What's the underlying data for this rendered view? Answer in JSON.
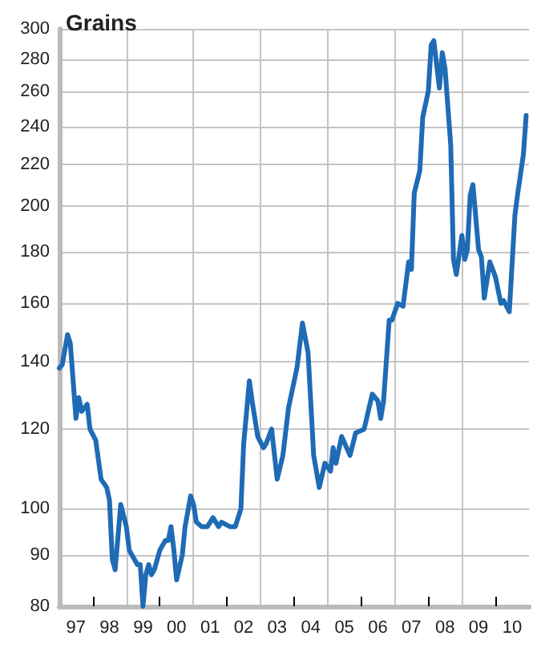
{
  "chart_data": {
    "type": "line",
    "title": "Grains",
    "log": "y",
    "grid": true,
    "marker": "none",
    "line_style": "solid",
    "xlim": [
      "1997-01",
      "2011-01"
    ],
    "xticks": [
      {
        "value": "1997-07",
        "label": "97"
      },
      {
        "value": "1998-01",
        "label": null
      },
      {
        "value": "1998-07",
        "label": "98"
      },
      {
        "value": "1999-01",
        "label": null
      },
      {
        "value": "1999-07",
        "label": "99"
      },
      {
        "value": "2000-01",
        "label": null
      },
      {
        "value": "2000-07",
        "label": "00"
      },
      {
        "value": "2001-01",
        "label": null
      },
      {
        "value": "2001-07",
        "label": "01"
      },
      {
        "value": "2002-01",
        "label": null
      },
      {
        "value": "2002-07",
        "label": "02"
      },
      {
        "value": "2003-01",
        "label": null
      },
      {
        "value": "2003-07",
        "label": "03"
      },
      {
        "value": "2004-01",
        "label": null
      },
      {
        "value": "2004-07",
        "label": "04"
      },
      {
        "value": "2005-01",
        "label": null
      },
      {
        "value": "2005-07",
        "label": "05"
      },
      {
        "value": "2006-01",
        "label": null
      },
      {
        "value": "2006-07",
        "label": "06"
      },
      {
        "value": "2007-01",
        "label": null
      },
      {
        "value": "2007-07",
        "label": "07"
      },
      {
        "value": "2008-01",
        "label": null
      },
      {
        "value": "2008-07",
        "label": "08"
      },
      {
        "value": "2009-01",
        "label": null
      },
      {
        "value": "2009-07",
        "label": "09"
      },
      {
        "value": "2010-01",
        "label": null
      },
      {
        "value": "2010-07",
        "label": "10"
      }
    ],
    "ylim": [
      80,
      300
    ],
    "yticks": [
      80,
      90,
      100,
      120,
      140,
      160,
      180,
      200,
      220,
      240,
      260,
      280,
      300
    ],
    "series": [
      {
        "color": "#1f6bb5",
        "x": [
          "1997-01",
          "1997-02",
          "1997-04",
          "1997-05",
          "1997-07",
          "1997-08",
          "1997-09",
          "1997-11",
          "1997-12",
          "1998-02",
          "1998-04",
          "1998-06",
          "1998-07",
          "1998-08",
          "1998-09",
          "1998-11",
          "1999-01",
          "1999-02",
          "1999-03",
          "1999-05",
          "1999-06",
          "1999-07",
          "1999-08",
          "1999-09",
          "1999-10",
          "1999-11",
          "2000-01",
          "2000-03",
          "2000-04",
          "2000-05",
          "2000-06",
          "2000-07",
          "2000-09",
          "2000-10",
          "2000-12",
          "2001-01",
          "2001-02",
          "2001-04",
          "2001-06",
          "2001-08",
          "2001-09",
          "2001-10",
          "2001-11",
          "2002-02",
          "2002-04",
          "2002-06",
          "2002-07",
          "2002-09",
          "2002-10",
          "2002-12",
          "2003-02",
          "2003-03",
          "2003-05",
          "2003-07",
          "2003-09",
          "2003-11",
          "2004-02",
          "2004-04",
          "2004-06",
          "2004-08",
          "2004-10",
          "2004-12",
          "2005-02",
          "2005-03",
          "2005-04",
          "2005-06",
          "2005-09",
          "2005-11",
          "2006-02",
          "2006-05",
          "2006-07",
          "2006-08",
          "2006-09",
          "2006-11",
          "2006-12",
          "2007-02",
          "2007-04",
          "2007-06",
          "2007-07",
          "2007-08",
          "2007-10",
          "2007-11",
          "2008-01",
          "2008-02",
          "2008-03",
          "2008-05",
          "2008-06",
          "2008-07",
          "2008-09",
          "2008-10",
          "2008-11",
          "2009-01",
          "2009-02",
          "2009-03",
          "2009-04",
          "2009-05",
          "2009-07",
          "2009-08",
          "2009-09",
          "2009-11",
          "2010-01",
          "2010-03",
          "2010-04",
          "2010-06",
          "2010-08",
          "2010-09",
          "2010-11",
          "2010-12"
        ],
        "values": [
          138,
          139,
          149,
          146,
          123,
          129,
          125,
          127,
          120,
          117,
          107,
          105,
          102,
          89,
          87,
          101,
          96,
          91,
          90,
          88,
          88,
          80,
          86,
          88,
          86,
          87,
          91,
          93,
          93,
          96,
          91,
          85,
          90,
          96,
          103,
          101,
          97,
          96,
          96,
          98,
          97,
          96,
          97,
          96,
          96,
          100,
          116,
          134,
          128,
          118,
          115,
          116,
          120,
          107,
          113,
          126,
          138,
          153,
          143,
          113,
          105,
          111,
          109,
          115,
          111,
          118,
          113,
          119,
          120,
          130,
          128,
          123,
          128,
          154,
          154,
          160,
          159,
          176,
          173,
          206,
          217,
          245,
          260,
          289,
          292,
          262,
          284,
          274,
          230,
          177,
          171,
          187,
          177,
          181,
          205,
          210,
          181,
          178,
          162,
          176,
          170,
          160,
          161,
          157,
          196,
          206,
          225,
          246
        ]
      }
    ]
  }
}
